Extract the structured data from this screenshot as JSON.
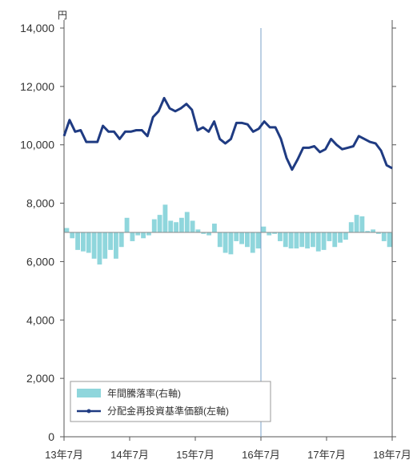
{
  "chart_data": {
    "type": "bar+line",
    "y_unit": "円",
    "left_axis": {
      "ylim": [
        0,
        14000
      ],
      "ticks": [
        "0",
        "2,000",
        "4,000",
        "6,000",
        "8,000",
        "10,000",
        "12,000",
        "14,000"
      ]
    },
    "x_ticks": [
      "13年7月",
      "14年7月",
      "15年7月",
      "16年7月",
      "17年7月",
      "18年7月"
    ],
    "x_range_months": [
      0,
      60
    ],
    "reference_line_month": 36,
    "bar_baseline_left_units": 7000,
    "legend": [
      {
        "name": "年間騰落率(右軸)",
        "kind": "bar",
        "color": "#8fd6dc"
      },
      {
        "name": "分配金再投資基準価額(左軸)",
        "kind": "line",
        "color": "#1f3b82"
      }
    ],
    "series": [
      {
        "name": "分配金再投資基準価額(左軸)",
        "axis": "left",
        "values": [
          10300,
          10850,
          10450,
          10500,
          10100,
          10100,
          10100,
          10650,
          10450,
          10450,
          10200,
          10450,
          10450,
          10500,
          10500,
          10300,
          10950,
          11150,
          11600,
          11250,
          11150,
          11250,
          11400,
          11200,
          10500,
          10600,
          10450,
          10800,
          10200,
          10050,
          10200,
          10750,
          10750,
          10700,
          10450,
          10550,
          10800,
          10600,
          10600,
          10200,
          9550,
          9150,
          9500,
          9900,
          9900,
          9950,
          9750,
          9850,
          10200,
          10000,
          9850,
          9900,
          9950,
          10300,
          10200,
          10100,
          10050,
          9800,
          9300,
          9200
        ]
      },
      {
        "name": "年間騰落率(右軸)",
        "axis": "right",
        "values_left_units": [
          7150,
          6800,
          6400,
          6350,
          6300,
          6100,
          5900,
          6100,
          6400,
          6100,
          6500,
          7500,
          6700,
          6900,
          6800,
          6900,
          7450,
          7600,
          7950,
          7400,
          7350,
          7500,
          7700,
          7400,
          7100,
          6950,
          6900,
          7300,
          6500,
          6300,
          6250,
          6700,
          6600,
          6500,
          6300,
          6450,
          7200,
          6900,
          6950,
          6700,
          6500,
          6450,
          6450,
          6500,
          6450,
          6500,
          6350,
          6400,
          6700,
          6500,
          6650,
          6750,
          7350,
          7600,
          7550,
          7050,
          7100,
          6950,
          6700,
          6500
        ]
      }
    ]
  }
}
